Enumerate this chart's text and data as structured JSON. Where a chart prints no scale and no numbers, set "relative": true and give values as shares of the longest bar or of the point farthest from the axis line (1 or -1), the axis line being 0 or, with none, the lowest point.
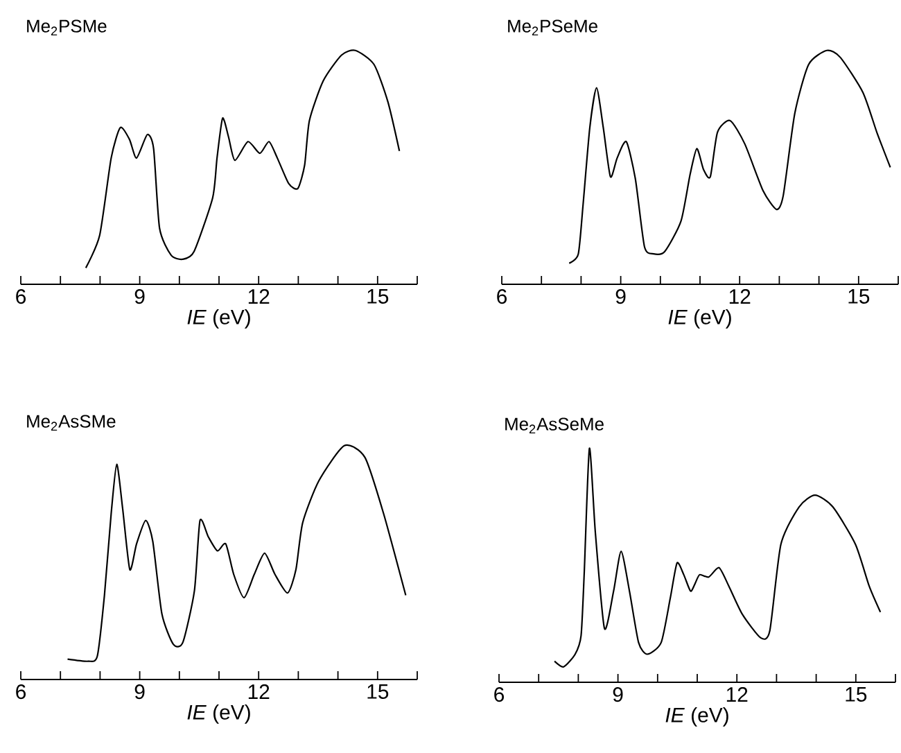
{
  "chart_data": [
    {
      "type": "line",
      "title": "Me$_{2}$PSMe",
      "xlabel": "*IE* (eV)",
      "relative": true,
      "color": "#000000",
      "xlim": [
        6,
        16
      ],
      "xticks": [
        6,
        {
          "value": 7,
          "label": null
        },
        {
          "value": 8,
          "label": null
        },
        9,
        {
          "value": 10,
          "label": null
        },
        {
          "value": 11,
          "label": null
        },
        12,
        {
          "value": 13,
          "label": null
        },
        {
          "value": 14,
          "label": null
        },
        15,
        {
          "value": 16,
          "label": null
        }
      ],
      "x": [
        7.64,
        7.99,
        8.28,
        8.51,
        8.74,
        8.92,
        9.19,
        9.35,
        9.5,
        9.79,
        10.08,
        10.37,
        10.84,
        10.95,
        11.09,
        11.24,
        11.4,
        11.73,
        12.03,
        12.26,
        12.47,
        12.76,
        12.99,
        13.16,
        13.28,
        13.63,
        14.09,
        14.44,
        14.91,
        15.26,
        15.55
      ],
      "values": [
        0.07,
        0.21,
        0.54,
        0.67,
        0.62,
        0.54,
        0.64,
        0.58,
        0.24,
        0.125,
        0.107,
        0.14,
        0.37,
        0.54,
        0.71,
        0.63,
        0.53,
        0.61,
        0.56,
        0.61,
        0.54,
        0.43,
        0.41,
        0.51,
        0.7,
        0.87,
        0.98,
        1.0,
        0.94,
        0.78,
        0.57
      ]
    },
    {
      "type": "line",
      "title": "Me$_{2}$PSeMe",
      "xlabel": "*IE* (eV)",
      "relative": true,
      "color": "#000000",
      "xlim": [
        6,
        16
      ],
      "xticks": [
        6,
        {
          "value": 7,
          "label": null
        },
        {
          "value": 8,
          "label": null
        },
        9,
        {
          "value": 10,
          "label": null
        },
        {
          "value": 11,
          "label": null
        },
        12,
        {
          "value": 13,
          "label": null
        },
        {
          "value": 14,
          "label": null
        },
        15,
        {
          "value": 16,
          "label": null
        }
      ],
      "x": [
        7.7,
        7.93,
        8.05,
        8.22,
        8.39,
        8.56,
        8.74,
        8.91,
        9.14,
        9.37,
        9.6,
        9.83,
        10.11,
        10.52,
        10.75,
        10.92,
        11.09,
        11.26,
        11.44,
        11.76,
        12.13,
        12.59,
        12.93,
        13.1,
        13.39,
        13.74,
        14.2,
        14.54,
        15.11,
        15.46,
        15.8
      ],
      "values": [
        0.09,
        0.13,
        0.34,
        0.67,
        0.84,
        0.67,
        0.46,
        0.54,
        0.61,
        0.45,
        0.16,
        0.13,
        0.14,
        0.27,
        0.47,
        0.58,
        0.49,
        0.46,
        0.65,
        0.7,
        0.6,
        0.4,
        0.32,
        0.38,
        0.73,
        0.94,
        1.0,
        0.97,
        0.82,
        0.65,
        0.5
      ]
    },
    {
      "type": "line",
      "title": "Me$_{2}$AsSMe",
      "xlabel": "*IE* (eV)",
      "relative": true,
      "color": "#000000",
      "xlim": [
        6,
        16
      ],
      "xticks": [
        6,
        {
          "value": 7,
          "label": null
        },
        {
          "value": 8,
          "label": null
        },
        9,
        {
          "value": 10,
          "label": null
        },
        {
          "value": 11,
          "label": null
        },
        12,
        {
          "value": 13,
          "label": null
        },
        {
          "value": 14,
          "label": null
        },
        15,
        {
          "value": 16,
          "label": null
        }
      ],
      "x": [
        7.18,
        7.7,
        7.93,
        8.11,
        8.28,
        8.42,
        8.57,
        8.75,
        8.92,
        9.15,
        9.33,
        9.56,
        9.85,
        10.09,
        10.38,
        10.52,
        10.73,
        10.96,
        11.17,
        11.37,
        11.63,
        11.89,
        12.15,
        12.41,
        12.73,
        12.94,
        13.11,
        13.52,
        14.16,
        14.68,
        15.15,
        15.71
      ],
      "values": [
        0.087,
        0.078,
        0.1,
        0.36,
        0.71,
        0.92,
        0.73,
        0.47,
        0.58,
        0.68,
        0.59,
        0.28,
        0.15,
        0.16,
        0.38,
        0.68,
        0.61,
        0.55,
        0.58,
        0.45,
        0.35,
        0.45,
        0.54,
        0.45,
        0.37,
        0.47,
        0.67,
        0.85,
        1.0,
        0.95,
        0.71,
        0.36
      ]
    },
    {
      "type": "line",
      "title": "Me$_{2}$AsSeMe",
      "xlabel": "*IE* (eV)",
      "relative": true,
      "color": "#000000",
      "xlim": [
        6,
        16
      ],
      "xticks": [
        6,
        {
          "value": 7,
          "label": null
        },
        {
          "value": 8,
          "label": null
        },
        9,
        {
          "value": 10,
          "label": null
        },
        {
          "value": 11,
          "label": null
        },
        12,
        {
          "value": 13,
          "label": null
        },
        {
          "value": 14,
          "label": null
        },
        15,
        {
          "value": 16,
          "label": null
        }
      ],
      "x": [
        7.4,
        7.63,
        7.92,
        8.07,
        8.15,
        8.28,
        8.43,
        8.66,
        8.89,
        9.08,
        9.29,
        9.52,
        9.74,
        10.09,
        10.32,
        10.49,
        10.66,
        10.83,
        10.94,
        11.06,
        11.29,
        11.55,
        11.8,
        12.14,
        12.6,
        12.83,
        13.11,
        13.57,
        13.97,
        14.42,
        14.99,
        15.34,
        15.62
      ],
      "values": [
        0.09,
        0.066,
        0.12,
        0.2,
        0.47,
        1.0,
        0.64,
        0.23,
        0.39,
        0.56,
        0.39,
        0.17,
        0.12,
        0.17,
        0.36,
        0.51,
        0.46,
        0.39,
        0.42,
        0.46,
        0.45,
        0.49,
        0.41,
        0.29,
        0.19,
        0.22,
        0.59,
        0.75,
        0.8,
        0.75,
        0.59,
        0.41,
        0.3
      ]
    }
  ]
}
